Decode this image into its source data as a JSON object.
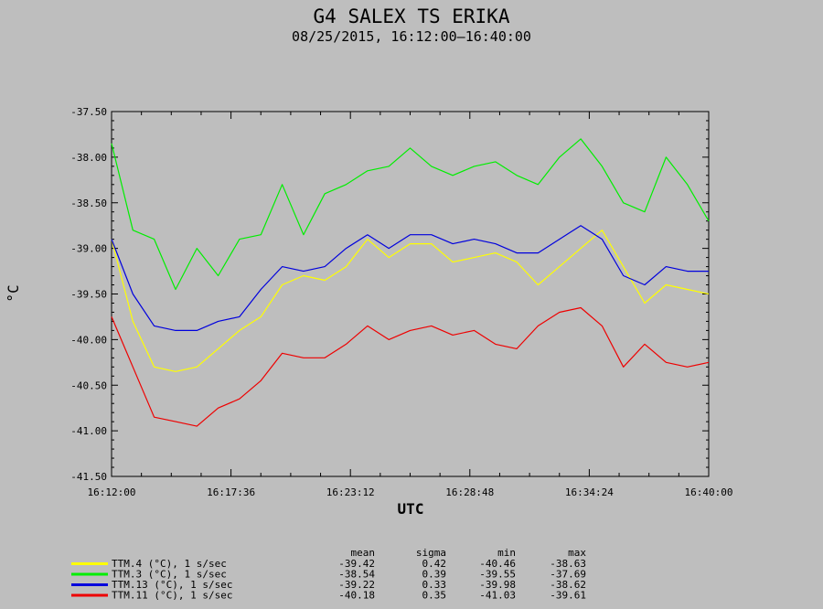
{
  "chart_data": {
    "type": "line",
    "title": "G4 SALEX TS ERIKA",
    "subtitle": "08/25/2015, 16:12:00–16:40:00",
    "xlabel": "UTC",
    "ylabel": "°C",
    "xlim": [
      "16:12:00",
      "16:40:00"
    ],
    "ylim": [
      -41.5,
      -37.5
    ],
    "x_ticks": [
      "16:12:00",
      "16:17:36",
      "16:23:12",
      "16:28:48",
      "16:34:24",
      "16:40:00"
    ],
    "y_ticks": [
      "-37.50",
      "-38.00",
      "-38.50",
      "-39.00",
      "-39.50",
      "-40.00",
      "-40.50",
      "-41.00",
      "-41.50"
    ],
    "x_minutes": [
      0,
      1,
      2,
      3,
      4,
      5,
      6,
      7,
      8,
      9,
      10,
      11,
      12,
      13,
      14,
      15,
      16,
      17,
      18,
      19,
      20,
      21,
      22,
      23,
      24,
      25,
      26,
      27,
      28
    ],
    "legend_header": {
      "mean": "mean",
      "sigma": "sigma",
      "min": "min",
      "max": "max"
    },
    "series": [
      {
        "name": "TTM.4 (°C), 1 s/sec",
        "color": "#ffff00",
        "stats": {
          "mean": "-39.42",
          "sigma": "0.42",
          "min": "-40.46",
          "max": "-38.63"
        },
        "values": [
          -38.9,
          -39.8,
          -40.3,
          -40.35,
          -40.3,
          -40.1,
          -39.9,
          -39.75,
          -39.4,
          -39.3,
          -39.35,
          -39.2,
          -38.9,
          -39.1,
          -38.95,
          -38.95,
          -39.15,
          -39.1,
          -39.05,
          -39.15,
          -39.4,
          -39.2,
          -39.0,
          -38.8,
          -39.2,
          -39.6,
          -39.4,
          -39.45,
          -39.5
        ]
      },
      {
        "name": "TTM.3 (°C), 1 s/sec",
        "color": "#00ee00",
        "stats": {
          "mean": "-38.54",
          "sigma": "0.39",
          "min": "-39.55",
          "max": "-37.69"
        },
        "values": [
          -37.85,
          -38.8,
          -38.9,
          -39.45,
          -39.0,
          -39.3,
          -38.9,
          -38.85,
          -38.3,
          -38.85,
          -38.4,
          -38.3,
          -38.15,
          -38.1,
          -37.9,
          -38.1,
          -38.2,
          -38.1,
          -38.05,
          -38.2,
          -38.3,
          -38.0,
          -37.8,
          -38.1,
          -38.5,
          -38.6,
          -38.0,
          -38.3,
          -38.7
        ]
      },
      {
        "name": "TTM.13 (°C), 1 s/sec",
        "color": "#0000dd",
        "stats": {
          "mean": "-39.22",
          "sigma": "0.33",
          "min": "-39.98",
          "max": "-38.62"
        },
        "values": [
          -38.9,
          -39.5,
          -39.85,
          -39.9,
          -39.9,
          -39.8,
          -39.75,
          -39.45,
          -39.2,
          -39.25,
          -39.2,
          -39.0,
          -38.85,
          -39.0,
          -38.85,
          -38.85,
          -38.95,
          -38.9,
          -38.95,
          -39.05,
          -39.05,
          -38.9,
          -38.75,
          -38.9,
          -39.3,
          -39.4,
          -39.2,
          -39.25,
          -39.25
        ]
      },
      {
        "name": "TTM.11 (°C), 1 s/sec",
        "color": "#ee0000",
        "stats": {
          "mean": "-40.18",
          "sigma": "0.35",
          "min": "-41.03",
          "max": "-39.61"
        },
        "values": [
          -39.75,
          -40.3,
          -40.85,
          -40.9,
          -40.95,
          -40.75,
          -40.65,
          -40.45,
          -40.15,
          -40.2,
          -40.2,
          -40.05,
          -39.85,
          -40.0,
          -39.9,
          -39.85,
          -39.95,
          -39.9,
          -40.05,
          -40.1,
          -39.85,
          -39.7,
          -39.65,
          -39.85,
          -40.3,
          -40.05,
          -40.25,
          -40.3,
          -40.25
        ]
      }
    ]
  }
}
